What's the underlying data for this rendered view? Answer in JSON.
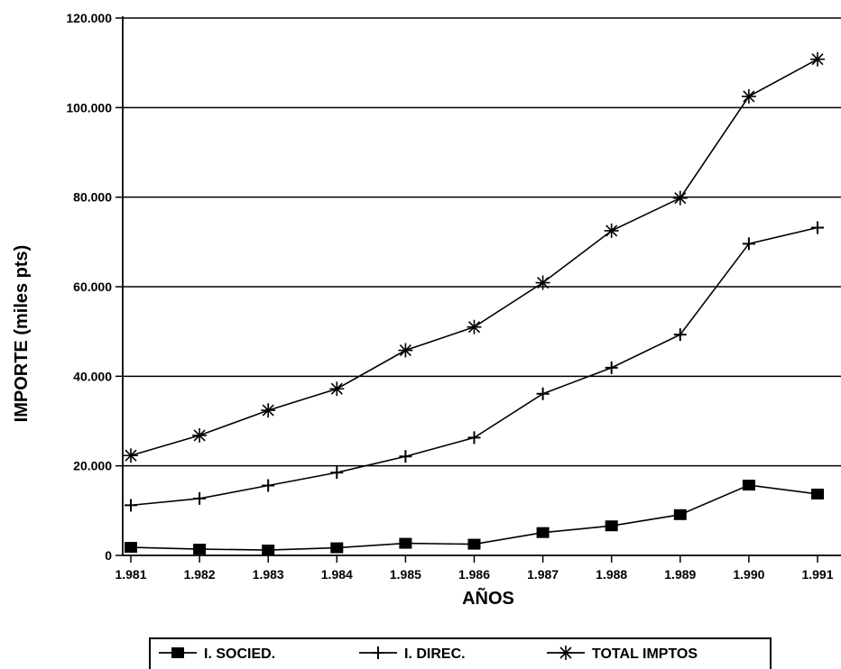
{
  "chart_data": {
    "type": "line",
    "xlabel": "AÑOS",
    "ylabel": "IMPORTE (miles pts)",
    "categories": [
      "1.981",
      "1.982",
      "1.983",
      "1.984",
      "1.985",
      "1.986",
      "1.987",
      "1.988",
      "1.989",
      "1.990",
      "1.991"
    ],
    "y_ticks": [
      "0",
      "20.000",
      "40.000",
      "60.000",
      "80.000",
      "100.000",
      "120.000"
    ],
    "ylim": [
      0,
      120000
    ],
    "grid": "horizontal",
    "legend_position": "bottom",
    "series": [
      {
        "name": "I. SOCIED.",
        "marker": "square",
        "values": [
          1800,
          1400,
          1200,
          1700,
          2700,
          2500,
          5100,
          6600,
          9100,
          15700,
          13700
        ]
      },
      {
        "name": "I. DIREC.",
        "marker": "plus",
        "values": [
          11200,
          12700,
          15600,
          18500,
          22100,
          26300,
          36100,
          41900,
          49300,
          69600,
          73200
        ]
      },
      {
        "name": "TOTAL IMPTOS",
        "marker": "star",
        "values": [
          22300,
          26800,
          32400,
          37200,
          45800,
          51000,
          60900,
          72500,
          79800,
          102500,
          110800
        ]
      }
    ]
  }
}
